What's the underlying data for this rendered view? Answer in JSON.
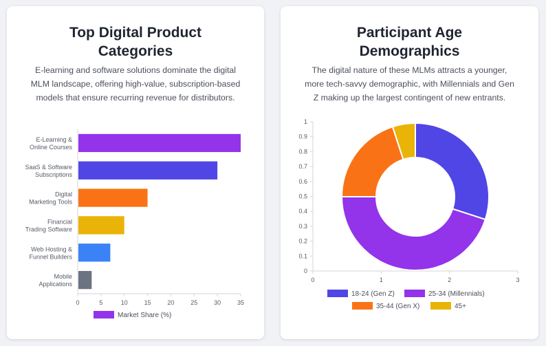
{
  "left_card": {
    "title_line1": "Top Digital Product",
    "title_line2": "Categories",
    "desc_line1": "E-learning and software solutions dominate the digital",
    "desc_line2": "MLM landscape, offering high-value, subscription-based",
    "desc_line3": "models that ensure recurring revenue for distributors."
  },
  "right_card": {
    "title_line1": "Participant Age",
    "title_line2": "Demographics",
    "desc_line1": "The digital nature of these MLMs attracts a younger,",
    "desc_line2": "more tech-savvy demographic, with Millennials and Gen",
    "desc_line3": "Z making up the largest contingent of new entrants."
  },
  "chart_data": [
    {
      "type": "bar",
      "orientation": "horizontal",
      "categories": [
        [
          "E-Learning &",
          "Online Courses"
        ],
        [
          "SaaS & Software",
          "Subscriptions"
        ],
        [
          "Digital",
          "Marketing Tools"
        ],
        [
          "Financial",
          "Trading Software"
        ],
        [
          "Web Hosting &",
          "Funnel Builders"
        ],
        [
          "Mobile",
          "Applications"
        ]
      ],
      "series": [
        {
          "name": "Market Share (%)",
          "values": [
            35,
            30,
            15,
            10,
            7,
            3
          ]
        }
      ],
      "colors": [
        "#9333ea",
        "#4f46e5",
        "#f97316",
        "#eab308",
        "#3b82f6",
        "#6b7280"
      ],
      "xlim": [
        0,
        35
      ],
      "xticks": [
        "0",
        "5",
        "10",
        "15",
        "20",
        "25",
        "30",
        "35"
      ],
      "legend_position": "bottom",
      "legend_color": "#9333ea",
      "grid": false
    },
    {
      "type": "pie",
      "variant": "doughnut",
      "labels": [
        "18-24 (Gen Z)",
        "25-34 (Millennials)",
        "35-44 (Gen X)",
        "45+"
      ],
      "values": [
        30,
        45,
        20,
        5
      ],
      "colors": [
        "#4f46e5",
        "#9333ea",
        "#f97316",
        "#eab308"
      ],
      "xticks": [
        "0",
        "1",
        "2",
        "3"
      ],
      "yticks": [
        "0",
        "0.1",
        "0.2",
        "0.3",
        "0.4",
        "0.5",
        "0.6",
        "0.7",
        "0.8",
        "0.9",
        "1"
      ],
      "legend_position": "bottom",
      "grid": false
    }
  ]
}
